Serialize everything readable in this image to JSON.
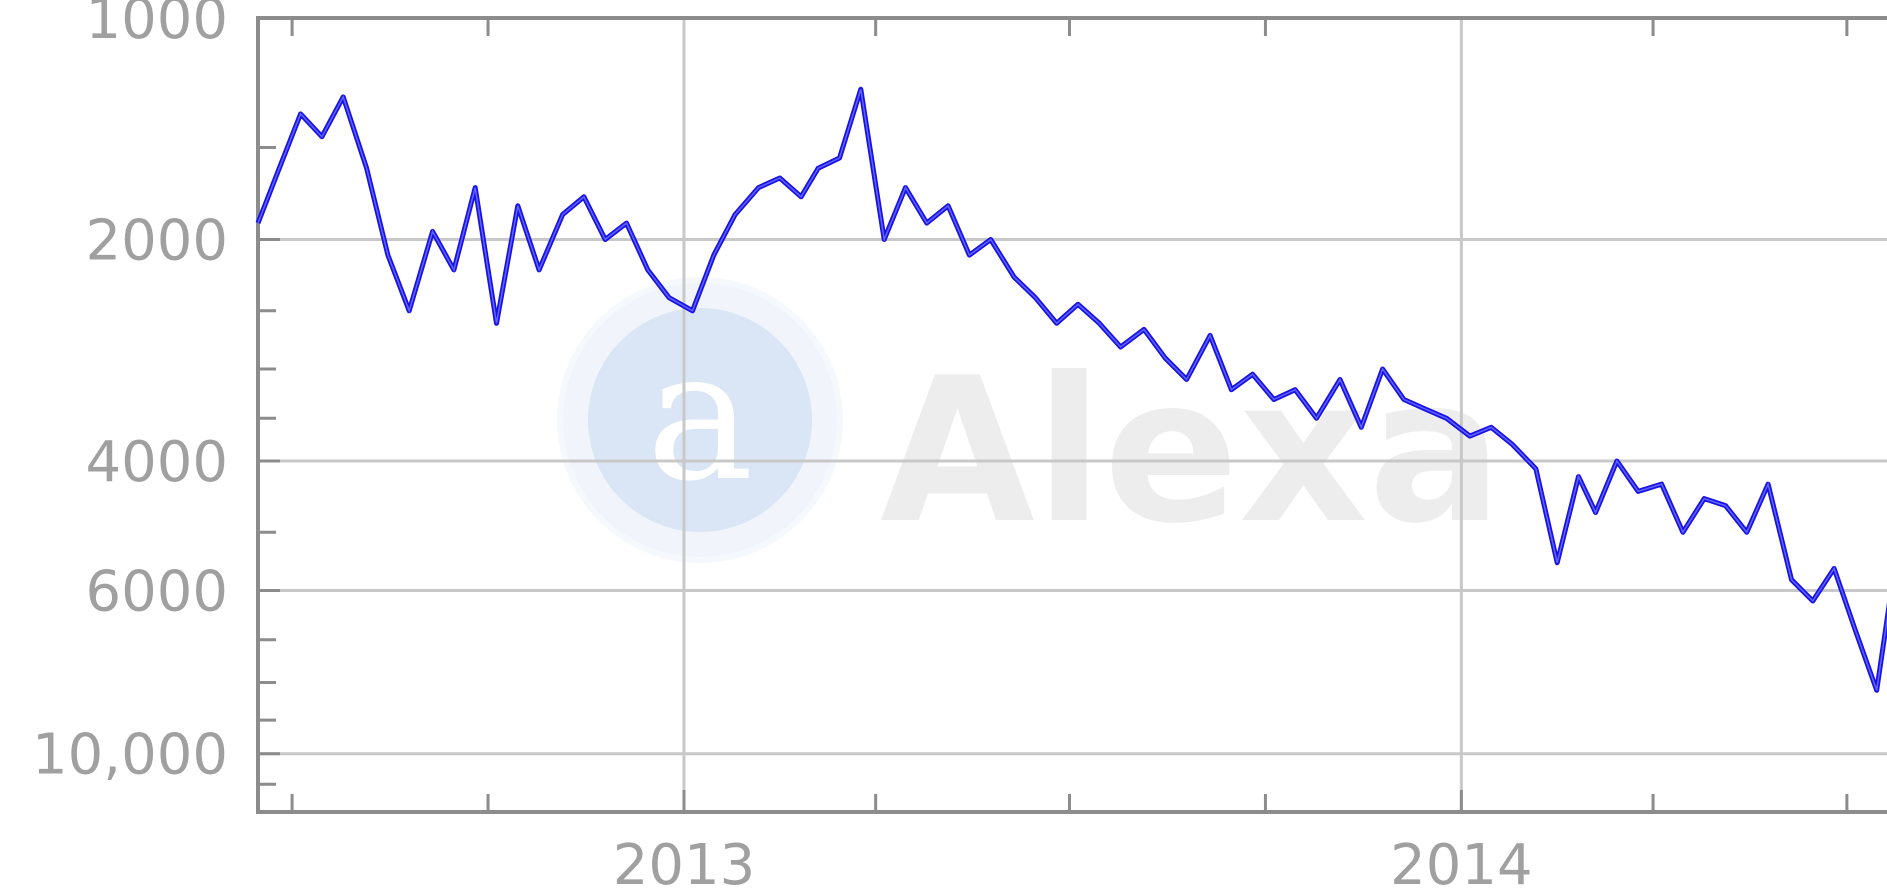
{
  "watermark": {
    "text": "Alexa",
    "icon": "alexa-logo-icon"
  },
  "colors": {
    "line": "#1a10e8",
    "line_highlight": "#8aa0ff",
    "grid": "#c8c8c8",
    "frame": "#8c8c8c",
    "label": "#a0a0a0"
  },
  "chart_data": {
    "type": "line",
    "title": "",
    "xlabel": "",
    "ylabel": "",
    "y_scale": "log",
    "y_inverted": true,
    "x_range": [
      "2012-06-15",
      "2014-07-25"
    ],
    "y_range": [
      1000,
      12000
    ],
    "y_ticks": [
      {
        "value": 1000,
        "label": "1000"
      },
      {
        "value": 2000,
        "label": "2000"
      },
      {
        "value": 4000,
        "label": "4000"
      },
      {
        "value": 6000,
        "label": "6000"
      },
      {
        "value": 10000,
        "label": "10,000"
      }
    ],
    "y_minor_ticks": [
      1500,
      2500,
      3000,
      3500,
      5000,
      7000,
      8000,
      9000,
      11000
    ],
    "x_ticks": [
      {
        "value": "2013-01-01",
        "label": "2013"
      },
      {
        "value": "2014-01-01",
        "label": "2014"
      }
    ],
    "x_minor_ticks": [
      "2012-07-01",
      "2012-10-01",
      "2013-04-01",
      "2013-07-01",
      "2013-10-01",
      "2014-04-01",
      "2014-07-01"
    ],
    "grid": true,
    "legend": "none",
    "series": [
      {
        "points": [
          [
            "2012-06-15",
            1900
          ],
          [
            "2012-06-25",
            1600
          ],
          [
            "2012-07-05",
            1350
          ],
          [
            "2012-07-15",
            1450
          ],
          [
            "2012-07-25",
            1280
          ],
          [
            "2012-08-05",
            1600
          ],
          [
            "2012-08-15",
            2100
          ],
          [
            "2012-08-25",
            2500
          ],
          [
            "2012-09-05",
            1950
          ],
          [
            "2012-09-15",
            2200
          ],
          [
            "2012-09-25",
            1700
          ],
          [
            "2012-10-05",
            2600
          ],
          [
            "2012-10-15",
            1800
          ],
          [
            "2012-10-25",
            2200
          ],
          [
            "2012-11-05",
            1850
          ],
          [
            "2012-11-15",
            1750
          ],
          [
            "2012-11-25",
            2000
          ],
          [
            "2012-12-05",
            1900
          ],
          [
            "2012-12-15",
            2200
          ],
          [
            "2012-12-25",
            2400
          ],
          [
            "2013-01-05",
            2500
          ],
          [
            "2013-01-15",
            2100
          ],
          [
            "2013-01-25",
            1850
          ],
          [
            "2013-02-05",
            1700
          ],
          [
            "2013-02-15",
            1650
          ],
          [
            "2013-02-25",
            1750
          ],
          [
            "2013-03-05",
            1600
          ],
          [
            "2013-03-15",
            1550
          ],
          [
            "2013-03-25",
            1250
          ],
          [
            "2013-04-05",
            2000
          ],
          [
            "2013-04-15",
            1700
          ],
          [
            "2013-04-25",
            1900
          ],
          [
            "2013-05-05",
            1800
          ],
          [
            "2013-05-15",
            2100
          ],
          [
            "2013-05-25",
            2000
          ],
          [
            "2013-06-05",
            2250
          ],
          [
            "2013-06-15",
            2400
          ],
          [
            "2013-06-25",
            2600
          ],
          [
            "2013-07-05",
            2450
          ],
          [
            "2013-07-15",
            2600
          ],
          [
            "2013-07-25",
            2800
          ],
          [
            "2013-08-05",
            2650
          ],
          [
            "2013-08-15",
            2900
          ],
          [
            "2013-08-25",
            3100
          ],
          [
            "2013-09-05",
            2700
          ],
          [
            "2013-09-15",
            3200
          ],
          [
            "2013-09-25",
            3050
          ],
          [
            "2013-10-05",
            3300
          ],
          [
            "2013-10-15",
            3200
          ],
          [
            "2013-10-25",
            3500
          ],
          [
            "2013-11-05",
            3100
          ],
          [
            "2013-11-15",
            3600
          ],
          [
            "2013-11-25",
            3000
          ],
          [
            "2013-12-05",
            3300
          ],
          [
            "2013-12-15",
            3400
          ],
          [
            "2013-12-25",
            3500
          ],
          [
            "2014-01-05",
            3700
          ],
          [
            "2014-01-15",
            3600
          ],
          [
            "2014-01-25",
            3800
          ],
          [
            "2014-02-05",
            4100
          ],
          [
            "2014-02-15",
            5500
          ],
          [
            "2014-02-25",
            4200
          ],
          [
            "2014-03-05",
            4700
          ],
          [
            "2014-03-15",
            4000
          ],
          [
            "2014-03-25",
            4400
          ],
          [
            "2014-04-05",
            4300
          ],
          [
            "2014-04-15",
            5000
          ],
          [
            "2014-04-25",
            4500
          ],
          [
            "2014-05-05",
            4600
          ],
          [
            "2014-05-15",
            5000
          ],
          [
            "2014-05-25",
            4300
          ],
          [
            "2014-06-05",
            5800
          ],
          [
            "2014-06-15",
            6200
          ],
          [
            "2014-06-25",
            5600
          ],
          [
            "2014-07-05",
            6800
          ],
          [
            "2014-07-15",
            8200
          ],
          [
            "2014-07-25",
            5200
          ]
        ]
      }
    ]
  }
}
